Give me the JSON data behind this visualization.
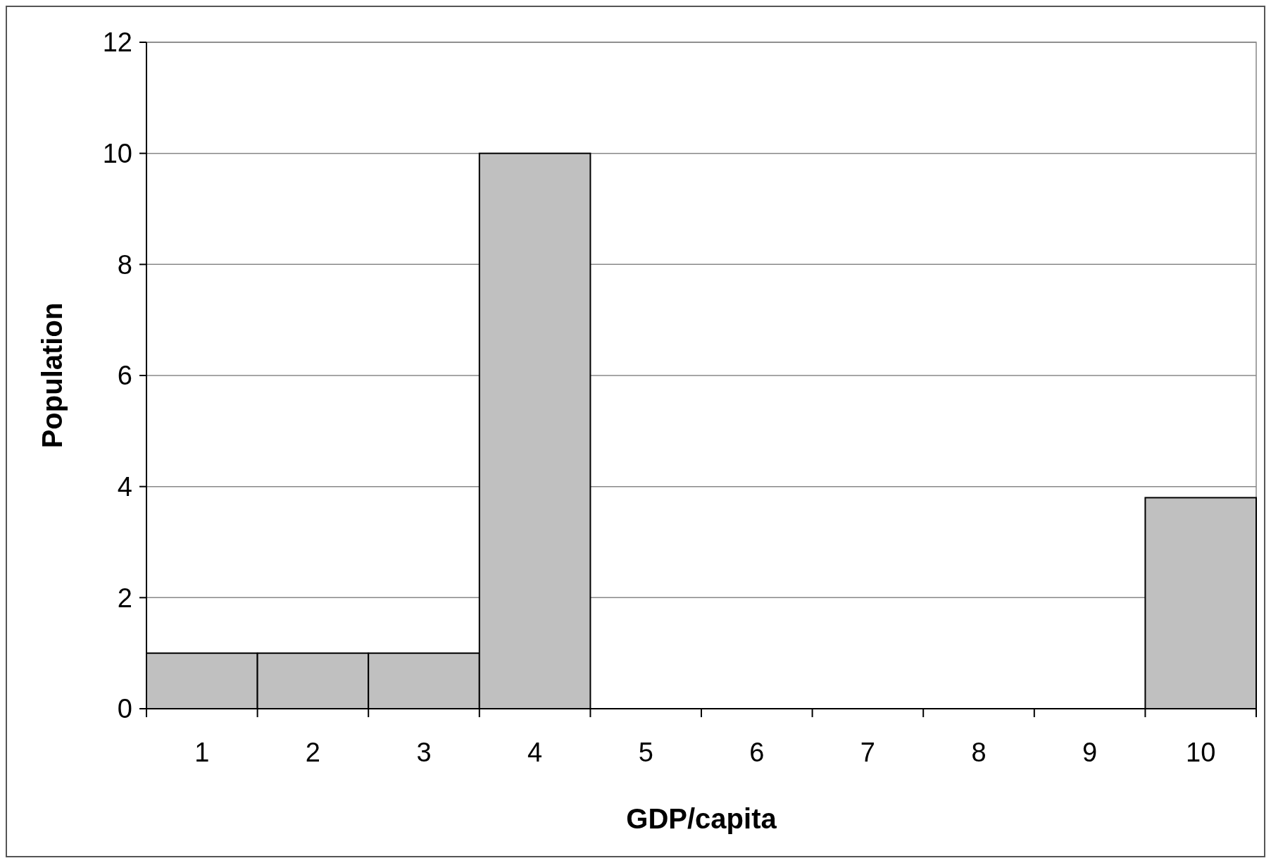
{
  "chart_data": {
    "type": "bar",
    "xlabel": "GDP/capita",
    "ylabel": "Population",
    "categories": [
      "1",
      "2",
      "3",
      "4",
      "5",
      "6",
      "7",
      "8",
      "9",
      "10"
    ],
    "values": [
      1,
      1,
      1,
      10,
      0,
      0,
      0,
      0,
      0,
      3.8
    ],
    "color": "#c0c0c0",
    "ylim": [
      0,
      12
    ],
    "yticks": [
      0,
      2,
      4,
      6,
      8,
      10,
      12
    ],
    "grid": "y"
  }
}
